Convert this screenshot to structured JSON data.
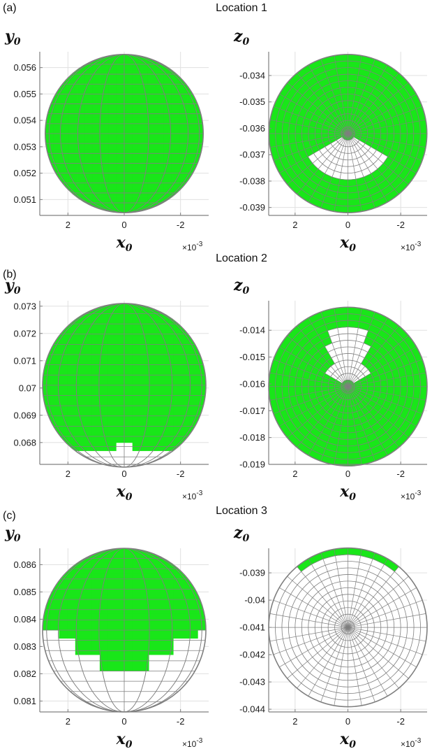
{
  "figure": {
    "sci_multiplier": "×10",
    "sci_exponent": "-3"
  },
  "chart_data": [
    {
      "type": "scatter",
      "panel_label": "(a)",
      "location_title": "Location 1",
      "view": "front",
      "xlabel": "x",
      "xlabel_sub": "0",
      "ylabel": "y",
      "ylabel_sub": "0",
      "x_ticks": [
        "2",
        "0",
        "-2"
      ],
      "x_tick_values": [
        0.002,
        0,
        -0.002
      ],
      "xlim": [
        0.003,
        -0.003
      ],
      "y_ticks": [
        "0.056",
        "0.055",
        "0.054",
        "0.053",
        "0.052",
        "0.051"
      ],
      "y_tick_values": [
        0.056,
        0.055,
        0.054,
        0.053,
        0.052,
        0.051
      ],
      "ylim": [
        0.0504,
        0.0566
      ],
      "sphere_center": [
        0,
        0.0535
      ],
      "sphere_radius": 0.003,
      "grid": true,
      "covered_colatitude_deg_from_top": [
        0,
        180
      ]
    },
    {
      "type": "scatter",
      "panel_label": "",
      "location_title": "",
      "view": "top",
      "xlabel": "x",
      "xlabel_sub": "0",
      "ylabel": "z",
      "ylabel_sub": "0",
      "x_ticks": [
        "2",
        "0",
        "-2"
      ],
      "x_tick_values": [
        0.002,
        0,
        -0.002
      ],
      "xlim": [
        0.003,
        -0.003
      ],
      "y_ticks": [
        "-0.034",
        "-0.035",
        "-0.036",
        "-0.037",
        "-0.038",
        "-0.039"
      ],
      "y_tick_values": [
        -0.034,
        -0.035,
        -0.036,
        -0.037,
        -0.038,
        -0.039
      ],
      "ylim": [
        -0.0393,
        -0.0331
      ],
      "sphere_center": [
        0,
        -0.0362
      ],
      "sphere_radius": 0.003,
      "grid": true,
      "uncovered_region": "small white sector below center, radius 0.2–0.55 of sphere"
    },
    {
      "type": "scatter",
      "panel_label": "(b)",
      "location_title": "Location 2",
      "view": "front",
      "xlabel": "x",
      "xlabel_sub": "0",
      "ylabel": "y",
      "ylabel_sub": "0",
      "x_ticks": [
        "2",
        "0",
        "-2"
      ],
      "x_tick_values": [
        0.002,
        0,
        -0.002
      ],
      "xlim": [
        0.003,
        -0.003
      ],
      "y_ticks": [
        "0.073",
        "0.072",
        "0.071",
        "0.07",
        "0.069",
        "0.068"
      ],
      "y_tick_values": [
        0.073,
        0.072,
        0.071,
        0.07,
        0.069,
        0.068
      ],
      "ylim": [
        0.0672,
        0.0732
      ],
      "sphere_center": [
        0,
        0.0701
      ],
      "sphere_radius": 0.003,
      "grid": true,
      "uncovered_region": "bottom cap below y ≈ 0.0678"
    },
    {
      "type": "scatter",
      "panel_label": "",
      "location_title": "",
      "view": "top",
      "xlabel": "x",
      "xlabel_sub": "0",
      "ylabel": "z",
      "ylabel_sub": "0",
      "x_ticks": [
        "2",
        "0",
        "-2"
      ],
      "x_tick_values": [
        0.002,
        0,
        -0.002
      ],
      "xlim": [
        0.003,
        -0.003
      ],
      "y_ticks": [
        "-0.014",
        "-0.015",
        "-0.016",
        "-0.017",
        "-0.018",
        "-0.019"
      ],
      "y_tick_values": [
        -0.014,
        -0.015,
        -0.016,
        -0.017,
        -0.018,
        -0.019
      ],
      "ylim": [
        -0.019,
        -0.0129
      ],
      "sphere_center": [
        0,
        -0.0161
      ],
      "sphere_radius": 0.003,
      "grid": true,
      "uncovered_region": "white wedge above center"
    },
    {
      "type": "scatter",
      "panel_label": "(c)",
      "location_title": "Location 3",
      "view": "front",
      "xlabel": "x",
      "xlabel_sub": "0",
      "ylabel": "y",
      "ylabel_sub": "0",
      "x_ticks": [
        "2",
        "0",
        "-2"
      ],
      "x_tick_values": [
        0.002,
        0,
        -0.002
      ],
      "xlim": [
        0.003,
        -0.003
      ],
      "y_ticks": [
        "0.086",
        "0.085",
        "0.084",
        "0.083",
        "0.082",
        "0.081"
      ],
      "y_tick_values": [
        0.086,
        0.085,
        0.084,
        0.083,
        0.082,
        0.081
      ],
      "ylim": [
        0.0806,
        0.0866
      ],
      "sphere_center": [
        0,
        0.0836
      ],
      "sphere_radius": 0.003,
      "grid": true,
      "covered_region": "upper part of sphere above y ≈ 0.0823–0.0837"
    },
    {
      "type": "scatter",
      "panel_label": "",
      "location_title": "",
      "view": "top",
      "xlabel": "x",
      "xlabel_sub": "0",
      "ylabel": "z",
      "ylabel_sub": "0",
      "x_ticks": [
        "2",
        "0",
        "-2"
      ],
      "x_tick_values": [
        0.002,
        0,
        -0.002
      ],
      "xlim": [
        0.003,
        -0.003
      ],
      "y_ticks": [
        "-0.039",
        "-0.04",
        "-0.041",
        "-0.042",
        "-0.043",
        "-0.044"
      ],
      "y_tick_values": [
        -0.039,
        -0.04,
        -0.041,
        -0.042,
        -0.043,
        -0.044
      ],
      "ylim": [
        -0.0441,
        -0.0381
      ],
      "sphere_center": [
        0,
        -0.041
      ],
      "sphere_radius": 0.003,
      "grid": true,
      "covered_region": "thin band along the upper rim"
    }
  ],
  "colors": {
    "covered": "#19e619",
    "mesh": "#7f7f7f",
    "axes": "#808080",
    "grid": "#e0e0e0"
  }
}
